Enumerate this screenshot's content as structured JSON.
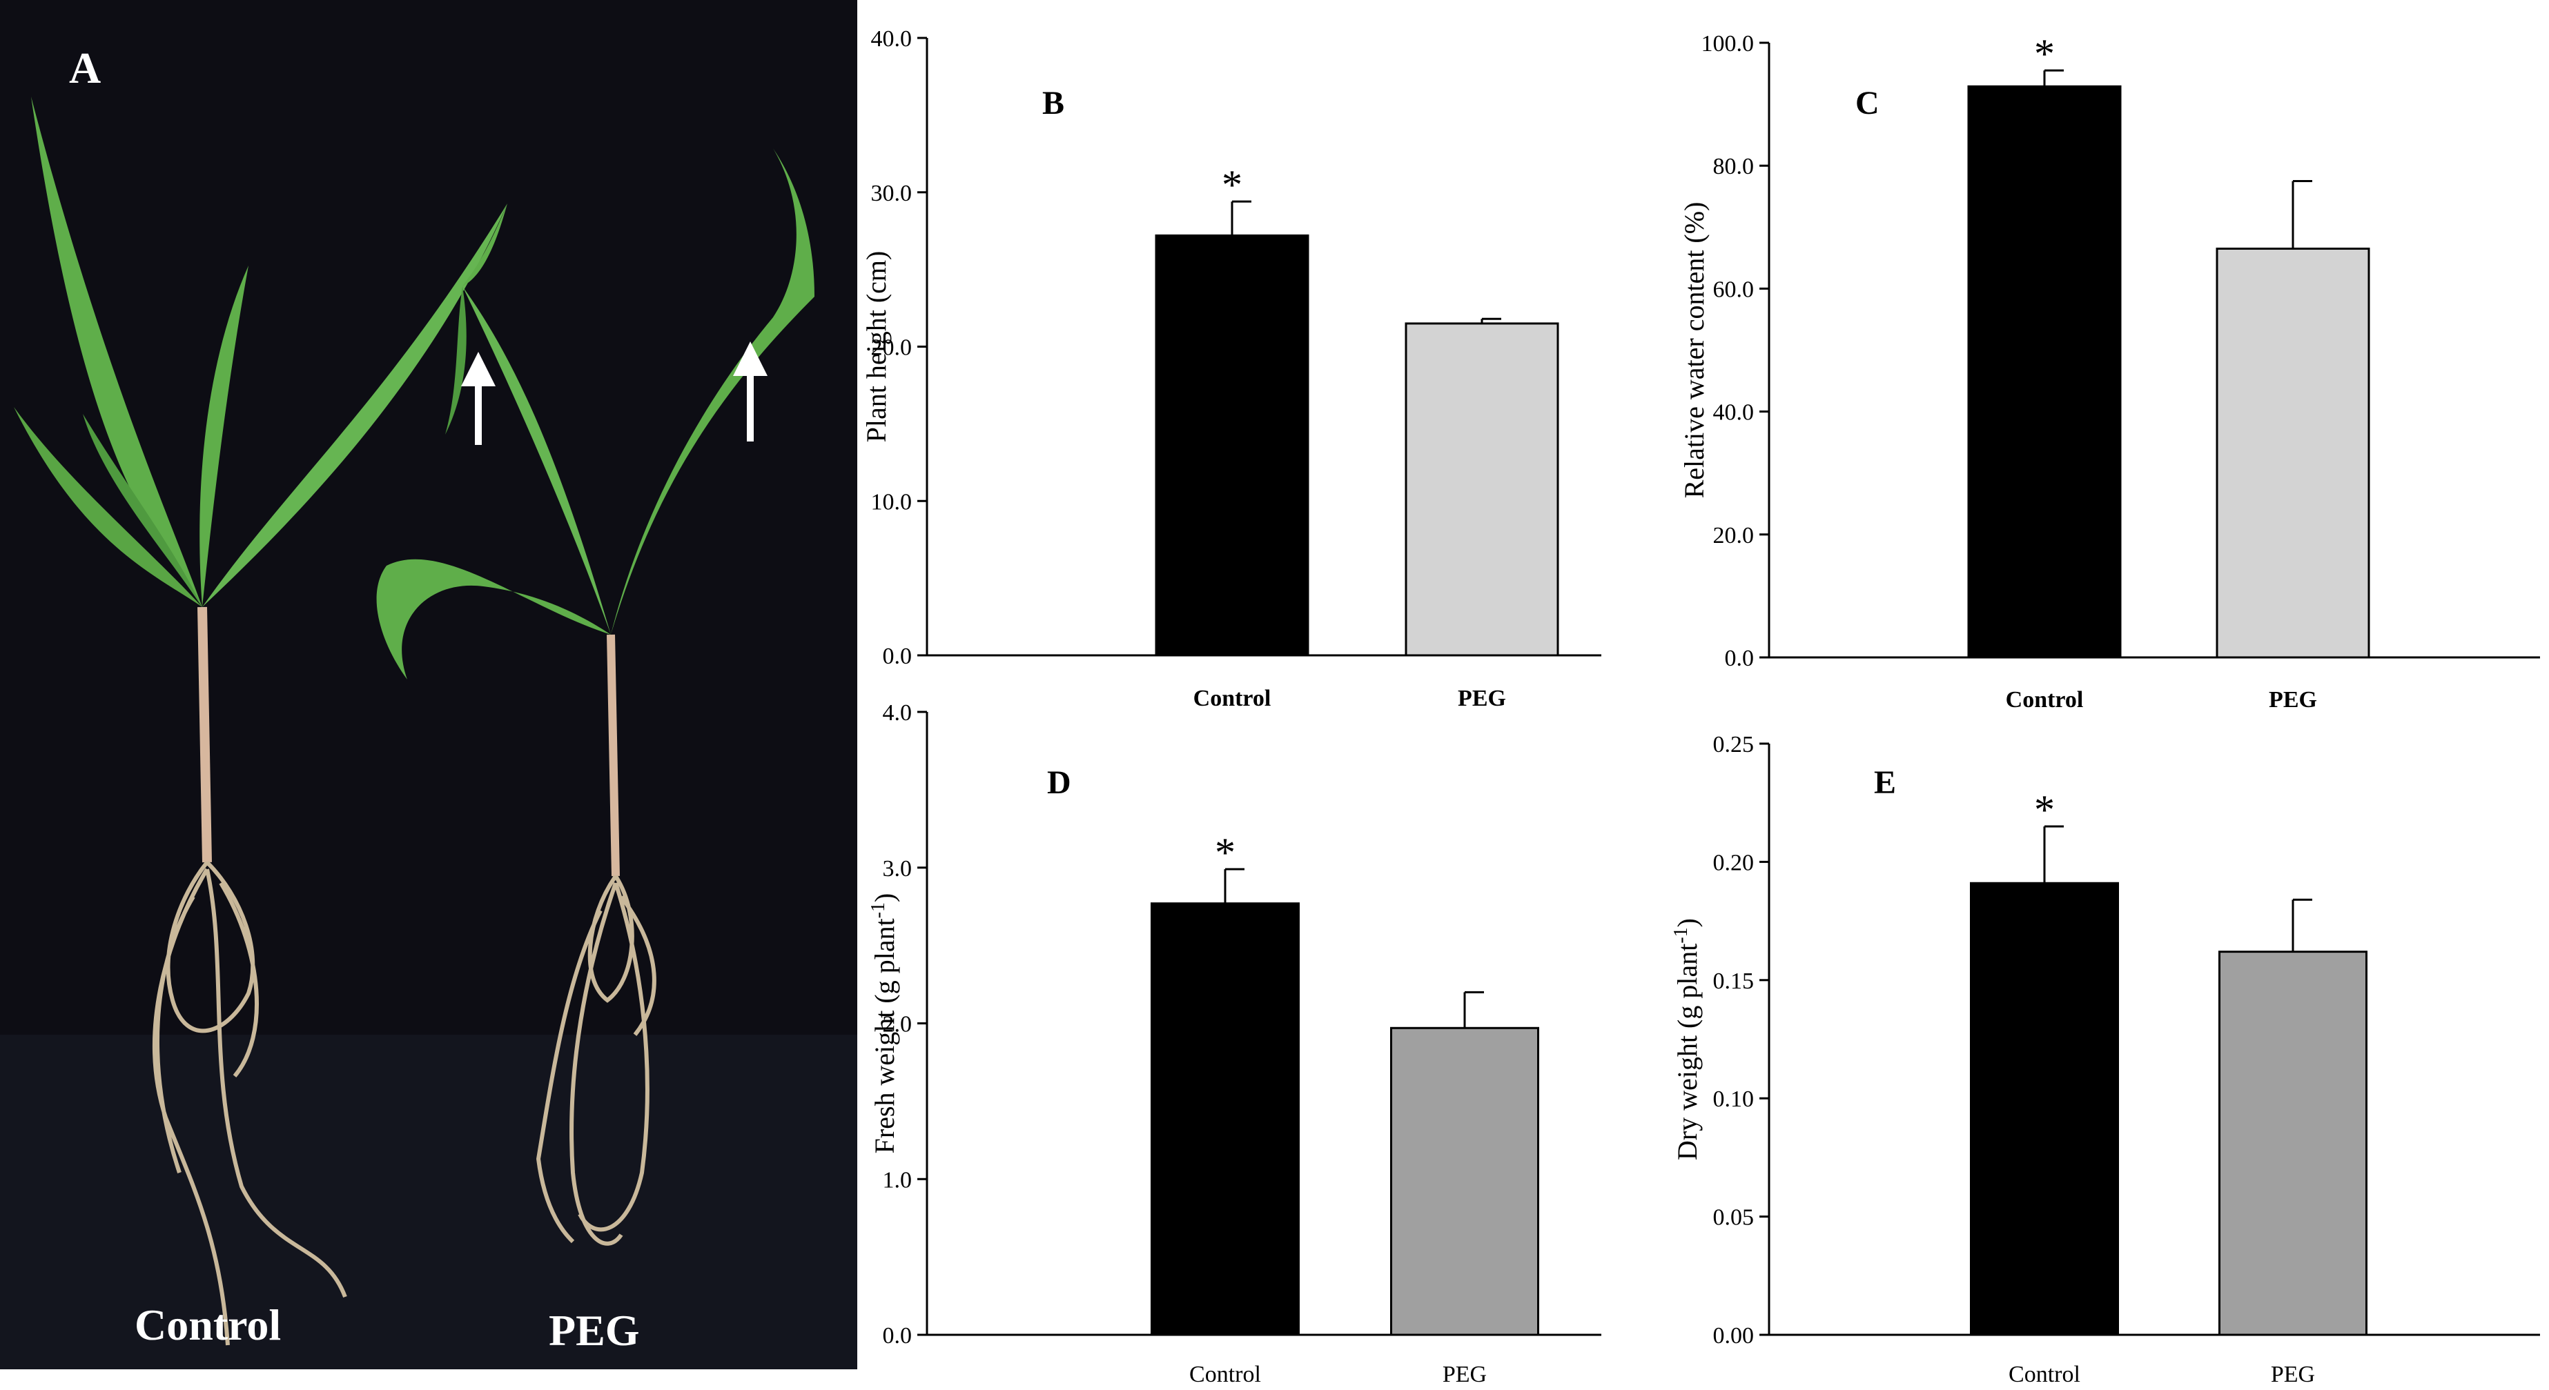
{
  "photo": {
    "panel_label": "A",
    "plant_labels": [
      "Control",
      "PEG"
    ],
    "background_color": "#0d0d14",
    "leaf_color": "#5fae4a",
    "root_color": "#c9b89a",
    "arrow_color": "#ffffff"
  },
  "chart_data": [
    {
      "type": "bar",
      "panel": "B",
      "categories": [
        "Control",
        "PEG"
      ],
      "category_bold": true,
      "values": [
        27.2,
        21.5
      ],
      "errors": [
        2.2,
        0.3
      ],
      "significance": [
        "*",
        ""
      ],
      "bar_colors": [
        "#000000",
        "#d3d3d3"
      ],
      "ylabel": "Plant height (cm)",
      "ylim": [
        0,
        40
      ],
      "yticks": [
        "0.0",
        "10.0",
        "20.0",
        "30.0",
        "40.0"
      ]
    },
    {
      "type": "bar",
      "panel": "C",
      "categories": [
        "Control",
        "PEG"
      ],
      "category_bold": true,
      "values": [
        92.9,
        66.5
      ],
      "errors": [
        2.6,
        11.0
      ],
      "significance": [
        "*",
        ""
      ],
      "bar_colors": [
        "#000000",
        "#d3d3d3"
      ],
      "ylabel": "Relative water content (%)",
      "ylim": [
        0,
        100
      ],
      "yticks": [
        "0.0",
        "20.0",
        "40.0",
        "60.0",
        "80.0",
        "100.0"
      ]
    },
    {
      "type": "bar",
      "panel": "D",
      "categories": [
        "Control",
        "PEG"
      ],
      "category_bold": false,
      "values": [
        2.77,
        1.97
      ],
      "errors": [
        0.22,
        0.23
      ],
      "significance": [
        "*",
        ""
      ],
      "bar_colors": [
        "#000000",
        "#a0a0a0"
      ],
      "ylabel": "Fresh weight (g plant",
      "ylabel_sup": "-1",
      "ylabel_end": ")",
      "ylim": [
        0,
        4
      ],
      "yticks": [
        "0.0",
        "1.0",
        "2.0",
        "3.0",
        "4.0"
      ]
    },
    {
      "type": "bar",
      "panel": "E",
      "categories": [
        "Control",
        "PEG"
      ],
      "category_bold": false,
      "values": [
        0.191,
        0.162
      ],
      "errors": [
        0.024,
        0.022
      ],
      "significance": [
        "*",
        ""
      ],
      "bar_colors": [
        "#000000",
        "#a0a0a0"
      ],
      "ylabel": "Dry weight (g plant",
      "ylabel_sup": "-1",
      "ylabel_end": ")",
      "ylim": [
        0,
        0.25
      ],
      "yticks": [
        "0.00",
        "0.05",
        "0.10",
        "0.15",
        "0.20",
        "0.25"
      ]
    }
  ]
}
